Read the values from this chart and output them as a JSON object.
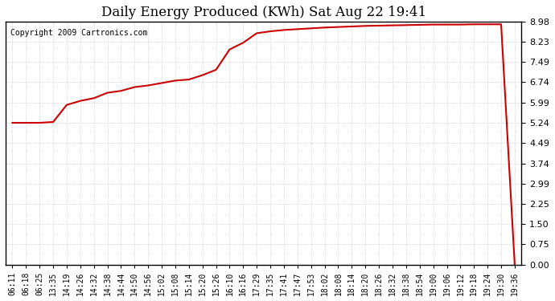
{
  "title": "Daily Energy Produced (KWh) Sat Aug 22 19:41",
  "copyright": "Copyright 2009 Cartronics.com",
  "line_color": "#cc0000",
  "line_width": 1.5,
  "background_color": "#ffffff",
  "grid_color": "#aaaaaa",
  "yticks": [
    0.0,
    0.75,
    1.5,
    2.25,
    2.99,
    3.74,
    4.49,
    5.24,
    5.99,
    6.74,
    7.49,
    8.23,
    8.98
  ],
  "ylim": [
    0,
    8.98
  ],
  "xtick_labels": [
    "06:11",
    "06:18",
    "06:25",
    "13:35",
    "14:19",
    "14:26",
    "14:32",
    "14:38",
    "14:44",
    "14:50",
    "14:56",
    "15:02",
    "15:08",
    "15:14",
    "15:20",
    "15:26",
    "16:10",
    "16:16",
    "17:29",
    "17:35",
    "17:41",
    "17:47",
    "17:53",
    "18:02",
    "18:08",
    "18:14",
    "18:20",
    "18:26",
    "18:32",
    "18:38",
    "18:54",
    "19:00",
    "19:06",
    "19:12",
    "19:18",
    "19:24",
    "19:30",
    "19:36"
  ],
  "x_values": [
    0,
    1,
    2,
    3,
    4,
    5,
    6,
    7,
    8,
    9,
    10,
    11,
    12,
    13,
    14,
    15,
    16,
    17,
    18,
    19,
    20,
    21,
    22,
    23,
    24,
    25,
    26,
    27,
    28,
    29,
    30,
    31,
    32,
    33,
    34,
    35,
    36,
    37
  ],
  "y_values": [
    5.24,
    5.24,
    5.24,
    5.27,
    5.9,
    6.05,
    6.15,
    6.35,
    6.42,
    6.56,
    6.62,
    6.71,
    6.8,
    6.84,
    7.0,
    7.2,
    7.95,
    8.2,
    8.55,
    8.62,
    8.67,
    8.7,
    8.73,
    8.76,
    8.78,
    8.8,
    8.82,
    8.83,
    8.84,
    8.85,
    8.86,
    8.87,
    8.87,
    8.87,
    8.88,
    8.88,
    8.88,
    0.0
  ]
}
